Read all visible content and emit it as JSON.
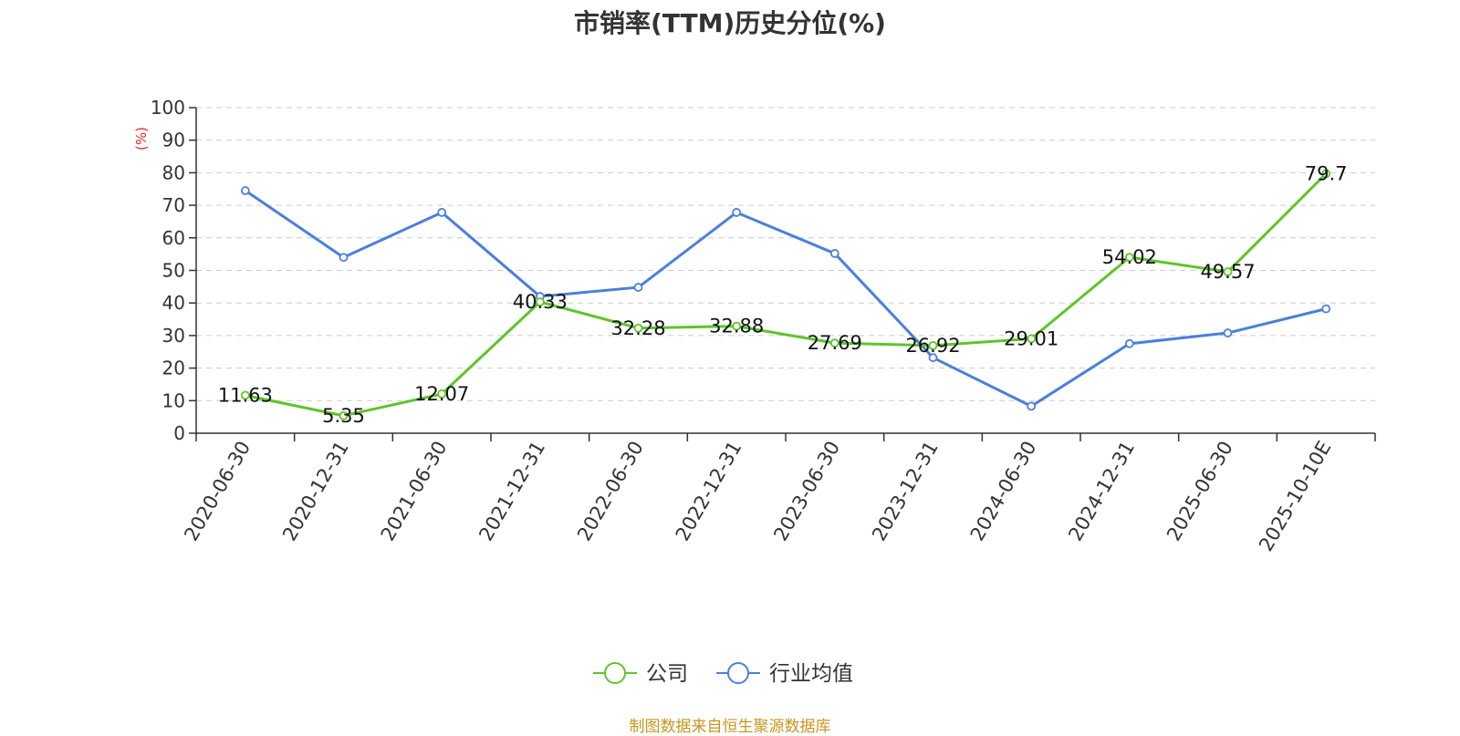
{
  "chart_data": {
    "type": "line",
    "title": "市销率(TTM)历史分位(%)",
    "ylabel": "(%)",
    "xlabel": "",
    "ylim": [
      0,
      100
    ],
    "yticks": [
      0,
      10,
      20,
      30,
      40,
      50,
      60,
      70,
      80,
      90,
      100
    ],
    "grid": true,
    "legend": "bottom-center",
    "categories": [
      "2020-06-30",
      "2020-12-31",
      "2021-06-30",
      "2021-12-31",
      "2022-06-30",
      "2022-12-31",
      "2023-06-30",
      "2023-12-31",
      "2024-06-30",
      "2024-12-31",
      "2025-06-30",
      "2025-10-10E"
    ],
    "series": [
      {
        "name": "公司",
        "color": "#5ec42a",
        "show_labels": true,
        "values": [
          11.63,
          5.35,
          12.07,
          40.33,
          32.28,
          32.88,
          27.69,
          26.92,
          29.01,
          54.02,
          49.57,
          79.7
        ]
      },
      {
        "name": "行业均值",
        "color": "#4a7fde",
        "show_labels": false,
        "values": [
          74.5,
          54.0,
          67.8,
          42.0,
          44.8,
          67.8,
          55.2,
          23.2,
          8.3,
          27.5,
          30.8,
          38.2
        ]
      }
    ]
  },
  "footer": {
    "source": "制图数据来自恒生聚源数据库"
  }
}
